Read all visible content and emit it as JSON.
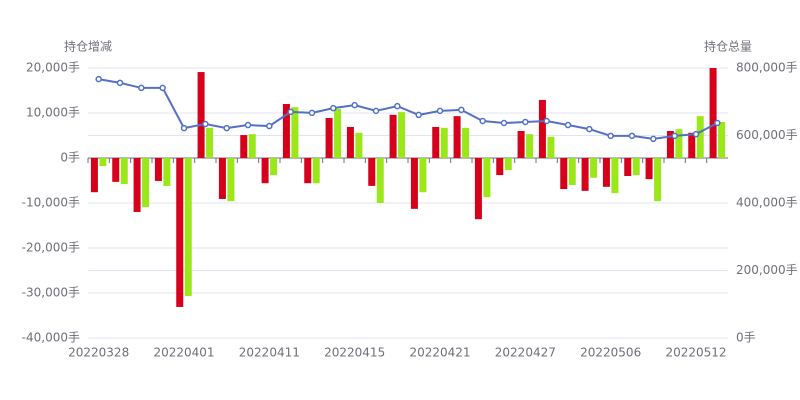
{
  "chart_data": {
    "type": "bar",
    "y_label": "持仓增减",
    "y2_label": "持仓总量",
    "categories": [
      "20220328",
      null,
      null,
      null,
      "20220401",
      null,
      null,
      null,
      "20220411",
      null,
      null,
      null,
      "20220415",
      null,
      null,
      null,
      "20220421",
      null,
      null,
      null,
      "20220427",
      null,
      null,
      null,
      "20220506",
      null,
      null,
      null,
      "20220512",
      null
    ],
    "series": [
      {
        "type": "bar",
        "color": "#d7001b",
        "values": [
          -7600,
          -5300,
          -12000,
          -5100,
          -33100,
          19100,
          -9100,
          5100,
          -5600,
          12000,
          -5600,
          8900,
          6900,
          -6200,
          9600,
          -11300,
          6900,
          9300,
          -13600,
          -3800,
          6000,
          12900,
          -6900,
          -7300,
          -6400,
          -4000,
          -4700,
          6000,
          5600,
          20000
        ]
      },
      {
        "type": "bar",
        "color": "#9ae81a",
        "values": [
          -1800,
          -5800,
          -10900,
          -6200,
          -30700,
          6700,
          -9600,
          5300,
          -3800,
          11300,
          -5600,
          10900,
          5600,
          -10000,
          10200,
          -7600,
          6700,
          6700,
          -8700,
          -2700,
          5300,
          4700,
          -6000,
          -4400,
          -7800,
          -3800,
          -9600,
          6400,
          9300,
          8000
        ]
      },
      {
        "type": "line",
        "axis": "y2",
        "color": "#5470c6",
        "values": [
          767000,
          756000,
          741000,
          741000,
          622000,
          634000,
          622000,
          631000,
          628000,
          670000,
          667000,
          681000,
          690000,
          673000,
          687000,
          661000,
          673000,
          676000,
          643000,
          637000,
          640000,
          643000,
          631000,
          619000,
          599000,
          599000,
          590000,
          599000,
          604000,
          637000
        ]
      }
    ],
    "ylim": [
      -40000,
      20000
    ],
    "yticks": [
      {
        "value": -40000,
        "label": "-40,000手"
      },
      {
        "value": -30000,
        "label": "-30,000手"
      },
      {
        "value": -20000,
        "label": "-20,000手"
      },
      {
        "value": -10000,
        "label": "-10,000手"
      },
      {
        "value": 0,
        "label": "0手"
      },
      {
        "value": 10000,
        "label": "10,000手"
      },
      {
        "value": 20000,
        "label": "20,000手"
      }
    ],
    "y2lim": [
      0,
      800000
    ],
    "y2ticks": [
      {
        "value": 0,
        "label": "0手"
      },
      {
        "value": 200000,
        "label": "200,000手"
      },
      {
        "value": 400000,
        "label": "400,000手"
      },
      {
        "value": 600000,
        "label": "600,000手"
      },
      {
        "value": 800000,
        "label": "800,000手"
      }
    ],
    "grid": true
  }
}
